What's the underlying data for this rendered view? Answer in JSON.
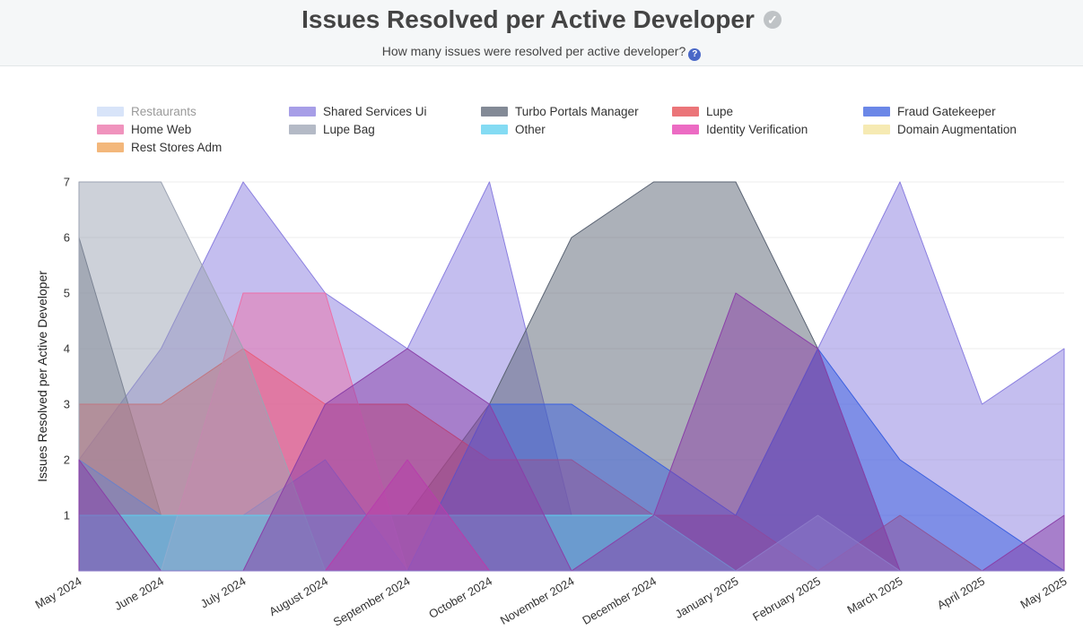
{
  "header": {
    "title": "Issues Resolved per Active Developer",
    "title_icon": "check-circle-icon",
    "subtitle": "How many issues were resolved per active developer?",
    "help_icon": "help-circle-icon"
  },
  "chart_data": {
    "type": "area",
    "ylabel": "Issues Resolved per Active Developer",
    "ylim": [
      0,
      7
    ],
    "yticks": [
      1,
      2,
      3,
      4,
      5,
      6,
      7
    ],
    "grid": true,
    "legend_placement": "top",
    "categories": [
      "May 2024",
      "June 2024",
      "July 2024",
      "August 2024",
      "September 2024",
      "October 2024",
      "November 2024",
      "December 2024",
      "January 2025",
      "February 2025",
      "March 2025",
      "April 2025",
      "May 2025"
    ],
    "series": [
      {
        "name": "Restaurants",
        "color": "#a9c4f2",
        "hidden": true,
        "values": [
          null,
          null,
          null,
          null,
          null,
          null,
          null,
          null,
          null,
          null,
          null,
          null,
          null
        ]
      },
      {
        "name": "Shared Services Ui",
        "color": "#8a7ee0",
        "values": [
          2,
          4,
          7,
          5,
          4,
          7,
          1,
          1,
          1,
          4,
          7,
          3,
          4
        ]
      },
      {
        "name": "Turbo Portals Manager",
        "color": "#5a6373",
        "values": [
          6,
          1,
          1,
          1,
          1,
          3,
          6,
          7,
          7,
          4,
          0,
          0,
          0
        ]
      },
      {
        "name": "Lupe",
        "color": "#e5484d",
        "values": [
          3,
          3,
          4,
          3,
          3,
          2,
          2,
          1,
          1,
          0,
          1,
          0,
          0
        ]
      },
      {
        "name": "Fraud Gatekeeper",
        "color": "#3a5fe0",
        "values": [
          2,
          1,
          1,
          2,
          0,
          3,
          3,
          2,
          1,
          4,
          2,
          1,
          0
        ]
      },
      {
        "name": "Home Web",
        "color": "#ec6fa8",
        "values": [
          0,
          0,
          5,
          5,
          0,
          0,
          0,
          0,
          0,
          0,
          0,
          0,
          0
        ]
      },
      {
        "name": "Lupe Bag",
        "color": "#9ca3b3",
        "values": [
          7,
          7,
          4,
          0,
          0,
          0,
          0,
          0,
          0,
          0,
          0,
          0,
          0
        ]
      },
      {
        "name": "Other",
        "color": "#5cd0f0",
        "values": [
          1,
          1,
          1,
          1,
          1,
          1,
          1,
          1,
          0,
          0,
          0,
          0,
          0
        ]
      },
      {
        "name": "Identity Verification",
        "color": "#e63ab0",
        "values": [
          0,
          0,
          0,
          0,
          2,
          0,
          0,
          0,
          0,
          0,
          0,
          0,
          0
        ]
      },
      {
        "name": "Domain Augmentation",
        "color": "#f3e39a",
        "values": [
          0,
          0,
          0,
          0,
          0,
          0,
          0,
          0,
          0,
          0,
          0,
          0,
          0
        ]
      },
      {
        "name": "Rest Stores Adm",
        "color": "#f0a050",
        "values": [
          0,
          0,
          0,
          0,
          0,
          0,
          0,
          0,
          0,
          0,
          0,
          0,
          0
        ]
      },
      {
        "name": "",
        "color": "#8a3fa8",
        "values": [
          2,
          0,
          0,
          3,
          4,
          3,
          0,
          1,
          5,
          4,
          0,
          0,
          1
        ]
      },
      {
        "name": "",
        "color": "#8c7ac8",
        "values": [
          0,
          0,
          0,
          0,
          0,
          0,
          0,
          0,
          0,
          1,
          0,
          0,
          0
        ]
      }
    ]
  }
}
